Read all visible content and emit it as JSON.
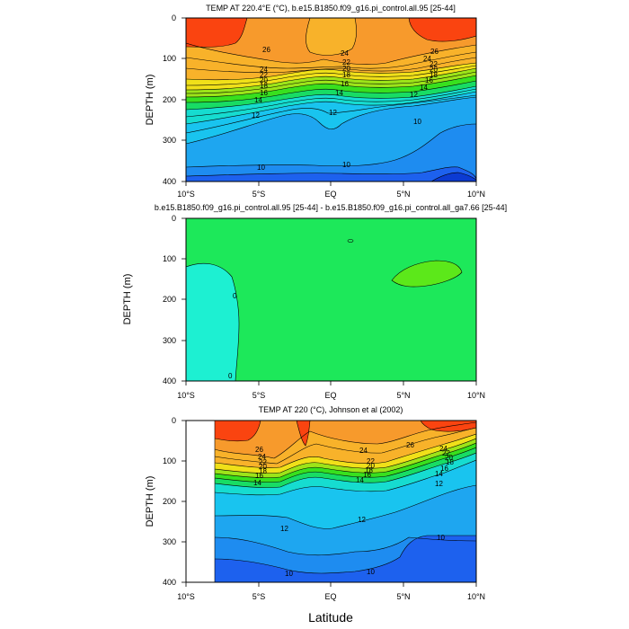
{
  "colors": {
    "c4": "#0c3bd2",
    "c6": "#1d61ee",
    "c8": "#1e8cf0",
    "c10": "#1ea6f0",
    "c12": "#19c4ef",
    "c14": "#16dcd0",
    "c16": "#18dc64",
    "c18": "#38e01e",
    "c20": "#9ce419",
    "c22": "#f0e019",
    "c24": "#f8b22a",
    "c26": "#f79a2c",
    "c28": "#f77a1e",
    "c30": "#fa4410",
    "diff0": "#1de85a",
    "diffneg": "#1df0d2",
    "diffpos": "#5ce81a",
    "line": "#000000"
  },
  "chart_data": [
    {
      "type": "contour",
      "title": "TEMP AT 220.4°E (°C), b.e15.B1850.f09_g16.pi_control.all.95 [25-44]",
      "ylabel": "DEPTH (m)",
      "xlabel": "",
      "x_ticks": [
        "10°S",
        "5°S",
        "EQ",
        "5°N",
        "10°N"
      ],
      "y_ticks": [
        "0",
        "100",
        "200",
        "300",
        "400"
      ],
      "xlim": [
        -10,
        10
      ],
      "ylim": [
        400,
        0
      ],
      "contour_labels": [
        "26",
        "24",
        "22",
        "20",
        "18",
        "16",
        "14",
        "12",
        "10",
        "24",
        "22",
        "20",
        "18",
        "16",
        "14",
        "12",
        "10",
        "26",
        "24",
        "22",
        "20",
        "18",
        "16",
        "14",
        "12",
        "10"
      ],
      "series": [
        {
          "level": 26,
          "x": [
            -10,
            -5,
            -2.5,
            0,
            2.5,
            5,
            7.5,
            10
          ],
          "depth": [
            62,
            80,
            100,
            95,
            100,
            85,
            62,
            56
          ]
        },
        {
          "level": 24,
          "x": [
            -10,
            -5,
            -2.5,
            0,
            2.5,
            5,
            7.5,
            10
          ],
          "depth": [
            104,
            110,
            112,
            106,
            108,
            104,
            100,
            96
          ]
        },
        {
          "level": 20,
          "x": [
            -10,
            -5,
            -2.5,
            0,
            2.5,
            5,
            7.5,
            10
          ],
          "depth": [
            150,
            140,
            132,
            122,
            125,
            128,
            125,
            118
          ]
        },
        {
          "level": 16,
          "x": [
            -10,
            -5,
            -2.5,
            0,
            2.5,
            5,
            7.5,
            10
          ],
          "depth": [
            180,
            168,
            158,
            150,
            155,
            160,
            160,
            155
          ]
        },
        {
          "level": 12,
          "x": [
            -10,
            -5,
            -2.5,
            0,
            2.5,
            5,
            7.5,
            10
          ],
          "depth": [
            270,
            240,
            228,
            260,
            230,
            200,
            190,
            180
          ]
        },
        {
          "level": 10,
          "x": [
            -10,
            -5,
            -2.5,
            0,
            2.5,
            5,
            7.5,
            10
          ],
          "depth": [
            390,
            372,
            368,
            358,
            362,
            340,
            238,
            225
          ]
        }
      ]
    },
    {
      "type": "contour",
      "title": "b.e15.B1850.f09_g16.pi_control.all.95 [25-44] - b.e15.B1850.f09_g16.pi_control.all_ga7.66 [25-44]",
      "ylabel": "DEPTH (m)",
      "xlabel": "",
      "x_ticks": [
        "10°S",
        "5°S",
        "EQ",
        "5°N",
        "10°N"
      ],
      "y_ticks": [
        "0",
        "100",
        "200",
        "300",
        "400"
      ],
      "xlim": [
        -10,
        10
      ],
      "ylim": [
        400,
        0
      ],
      "contour_labels": [
        "0",
        "0"
      ],
      "series": [
        {
          "level": 0,
          "x": [
            -10,
            -8.5,
            -7.6,
            -6.5,
            -6.0
          ],
          "depth": [
            118,
            112,
            128,
            200,
            400
          ]
        },
        {
          "level": 0,
          "x": [
            4.2,
            5.5,
            7.8,
            9.0,
            8.4,
            5.0
          ],
          "depth": [
            158,
            110,
            103,
            132,
            142,
            160
          ]
        },
        {
          "level": 0,
          "x": [
            1.1,
            1.4
          ],
          "depth": [
            55,
            55
          ]
        }
      ]
    },
    {
      "type": "contour",
      "title": "TEMP AT 220 (°C), Johnson et al (2002)",
      "ylabel": "DEPTH (m)",
      "xlabel": "Latitude",
      "x_ticks": [
        "10°S",
        "5°S",
        "EQ",
        "5°N",
        "10°N"
      ],
      "y_ticks": [
        "0",
        "100",
        "200",
        "300",
        "400"
      ],
      "xlim": [
        -10,
        10
      ],
      "ylim": [
        400,
        0
      ],
      "contour_labels": [
        "26",
        "24",
        "22",
        "20",
        "18",
        "16",
        "14",
        "24",
        "22",
        "20",
        "18",
        "16",
        "14",
        "12",
        "26",
        "24",
        "22",
        "20",
        "18",
        "16",
        "14",
        "12",
        "12",
        "10",
        "10",
        "10"
      ],
      "series": [
        {
          "level": 26,
          "x": [
            -8,
            -5,
            -2.5,
            0,
            2.5,
            5,
            7.5,
            10
          ],
          "depth": [
            70,
            72,
            90,
            86,
            90,
            60,
            40,
            32
          ]
        },
        {
          "level": 22,
          "x": [
            -8,
            -5,
            -2.5,
            0,
            2.5,
            5,
            7.5,
            10
          ],
          "depth": [
            108,
            115,
            105,
            114,
            110,
            98,
            78,
            68
          ]
        },
        {
          "level": 18,
          "x": [
            -8,
            -5,
            -2.5,
            0,
            2.5,
            5,
            7.5,
            10
          ],
          "depth": [
            130,
            128,
            112,
            120,
            120,
            120,
            100,
            88
          ]
        },
        {
          "level": 14,
          "x": [
            -8,
            -5,
            -2.5,
            0,
            2.5,
            5,
            7.5,
            10
          ],
          "depth": [
            158,
            150,
            138,
            144,
            150,
            160,
            120,
            110
          ]
        },
        {
          "level": 12,
          "x": [
            -8,
            -5,
            -2.5,
            0,
            2.5,
            5,
            7.5,
            10
          ],
          "depth": [
            242,
            238,
            262,
            265,
            225,
            215,
            180,
            165
          ]
        },
        {
          "level": 10,
          "x": [
            -8,
            -5,
            -2.5,
            0,
            2.5,
            5,
            7.5,
            10
          ],
          "depth": [
            375,
            370,
            385,
            380,
            370,
            360,
            300,
            295
          ]
        }
      ]
    }
  ]
}
